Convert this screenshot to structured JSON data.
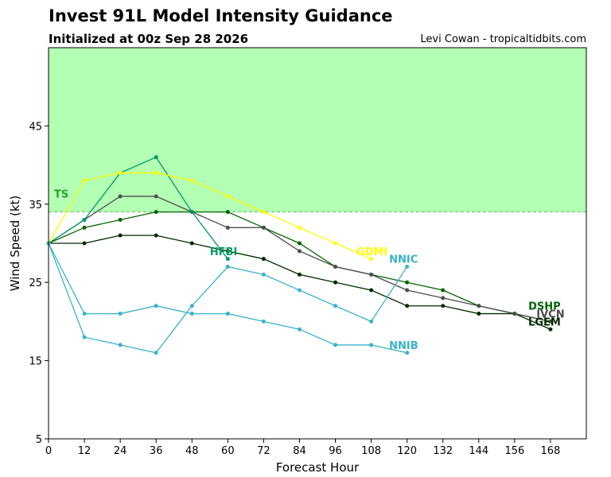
{
  "header": {
    "title": "Invest 91L Model Intensity Guidance",
    "subtitle": "Initialized at 00z Sep 28 2026",
    "credit": "Levi Cowan - tropicaltidbits.com"
  },
  "chart_data": {
    "type": "line",
    "title": "Invest 91L Model Intensity Guidance",
    "subtitle": "Initialized at 00z Sep 28 2026",
    "xlabel": "Forecast Hour",
    "ylabel": "Wind Speed (kt)",
    "xlim": [
      0,
      180
    ],
    "ylim": [
      5,
      55
    ],
    "xticks": [
      0,
      12,
      24,
      36,
      48,
      60,
      72,
      84,
      96,
      108,
      120,
      132,
      144,
      156,
      168
    ],
    "yticks": [
      5,
      15,
      25,
      35,
      45
    ],
    "grid": false,
    "shaded_region": {
      "label": "TS",
      "ymin": 34,
      "ymax": 55,
      "color": "#b3ffb3",
      "line_color": "#66bb66",
      "label_color": "#2ca02c"
    },
    "series": [
      {
        "name": "DSHP",
        "color": "#006400",
        "x": [
          0,
          12,
          24,
          36,
          48,
          60,
          72,
          84,
          96,
          108,
          120,
          132,
          144,
          156,
          168
        ],
        "y": [
          30,
          32,
          33,
          34,
          34,
          34,
          32,
          30,
          27,
          26,
          25,
          24,
          22,
          21,
          20
        ]
      },
      {
        "name": "LGEM",
        "color": "#002a00",
        "x": [
          0,
          12,
          24,
          36,
          48,
          60,
          72,
          84,
          96,
          108,
          120,
          132,
          144,
          156,
          168
        ],
        "y": [
          30,
          30,
          31,
          31,
          30,
          29,
          28,
          26,
          25,
          24,
          22,
          22,
          21,
          21,
          19
        ]
      },
      {
        "name": "IVCN",
        "color": "#4d4d4d",
        "x": [
          0,
          12,
          24,
          36,
          48,
          60,
          72,
          84,
          96,
          108,
          120,
          132,
          144,
          156,
          168
        ],
        "y": [
          30,
          33,
          36,
          36,
          34,
          32,
          32,
          29,
          27,
          26,
          24,
          23,
          22,
          21,
          20
        ]
      },
      {
        "name": "HFBI",
        "color": "#009966",
        "x": [
          0,
          12,
          24,
          36,
          48,
          60
        ],
        "y": [
          30,
          33,
          39,
          41,
          34,
          28
        ]
      },
      {
        "name": "GDMI",
        "color": "#ffff00",
        "x": [
          0,
          12,
          24,
          36,
          48,
          60,
          72,
          84,
          96,
          108
        ],
        "y": [
          30,
          38,
          39,
          39,
          38,
          36,
          34,
          32,
          30,
          28
        ]
      },
      {
        "name": "NNIC",
        "color": "#3ab3c8",
        "x": [
          0,
          12,
          24,
          36,
          48,
          60,
          72,
          84,
          96,
          108,
          120
        ],
        "y": [
          30,
          21,
          21,
          22,
          21,
          21,
          20,
          19,
          17,
          17,
          16
        ]
      },
      {
        "name": "NNIB",
        "color": "#3ab3c8",
        "x": [
          0,
          12,
          24,
          36,
          48,
          60,
          72,
          84,
          96,
          108,
          120
        ],
        "y": [
          30,
          18,
          17,
          16,
          22,
          27,
          26,
          24,
          22,
          20,
          27
        ]
      }
    ],
    "labels": [
      {
        "text": "DSHP",
        "color": "#006400"
      },
      {
        "text": "IVCN",
        "color": "#4d4d4d"
      },
      {
        "text": "LGEM",
        "color": "#002a00"
      },
      {
        "text": "HFBI",
        "color": "#009966"
      },
      {
        "text": "GDMI",
        "color": "#ffff00"
      },
      {
        "text": "NNIC",
        "color": "#3ab3c8"
      },
      {
        "text": "NNIB",
        "color": "#3ab3c8"
      }
    ]
  }
}
